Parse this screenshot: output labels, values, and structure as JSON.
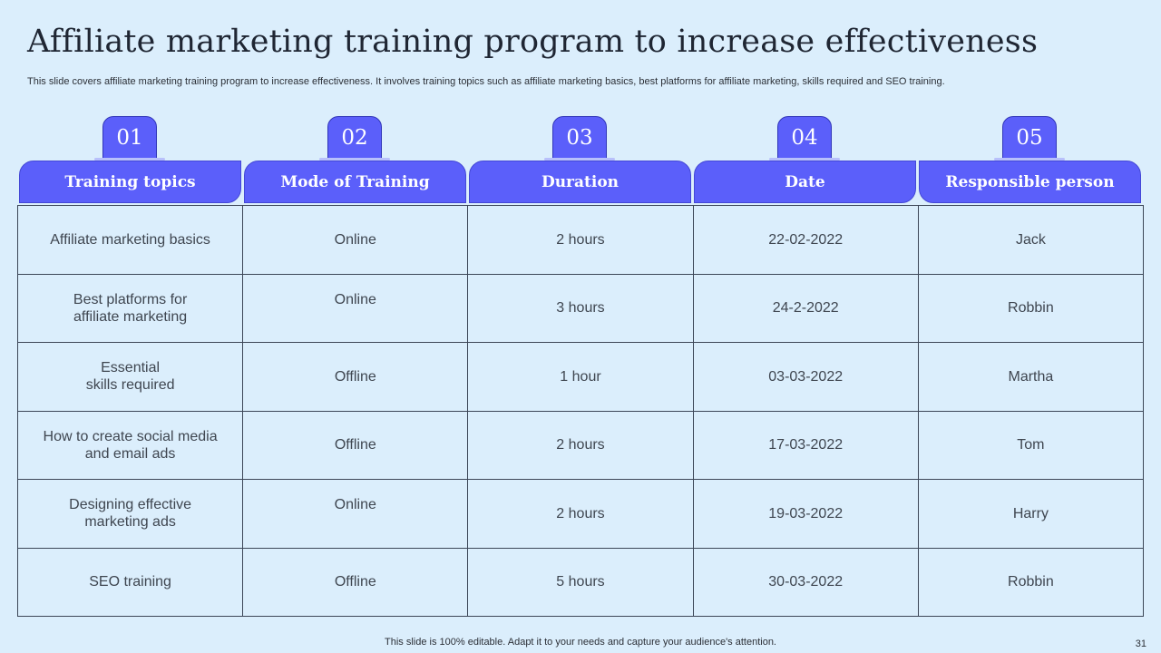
{
  "title": "Affiliate marketing training program to increase effectiveness",
  "subtitle": "This slide covers affiliate marketing training program to increase effectiveness. It involves training topics such as affiliate marketing basics, best platforms for affiliate marketing, skills required and SEO training.",
  "columns": [
    {
      "number": "01",
      "label": "Training topics"
    },
    {
      "number": "02",
      "label": "Mode of Training"
    },
    {
      "number": "03",
      "label": "Duration"
    },
    {
      "number": "04",
      "label": "Date"
    },
    {
      "number": "05",
      "label": "Responsible person"
    }
  ],
  "rows": [
    [
      "Affiliate marketing basics",
      "Online",
      "2 hours",
      "22-02-2022",
      "Jack"
    ],
    [
      "Best platforms  for\naffiliate marketing",
      "Online",
      "3 hours",
      "24-2-2022",
      "Robbin"
    ],
    [
      "Essential\nskills required",
      "Offline",
      "1 hour",
      "03-03-2022",
      "Martha"
    ],
    [
      "How to create social media\nand email ads",
      "Offline",
      "2 hours",
      "17-03-2022",
      "Tom"
    ],
    [
      "Designing effective\nmarketing ads",
      "Online",
      "2 hours",
      "19-03-2022",
      "Harry"
    ],
    [
      "SEO training",
      "Offline",
      "5 hours",
      "30-03-2022",
      "Robbin"
    ]
  ],
  "footer": "This slide is 100% editable. Adapt it to your needs and capture your audience's attention.",
  "page_number": "31",
  "colors": {
    "background": "#dbeefc",
    "accent": "#5b5ffa",
    "grid_line": "#3c4657"
  }
}
